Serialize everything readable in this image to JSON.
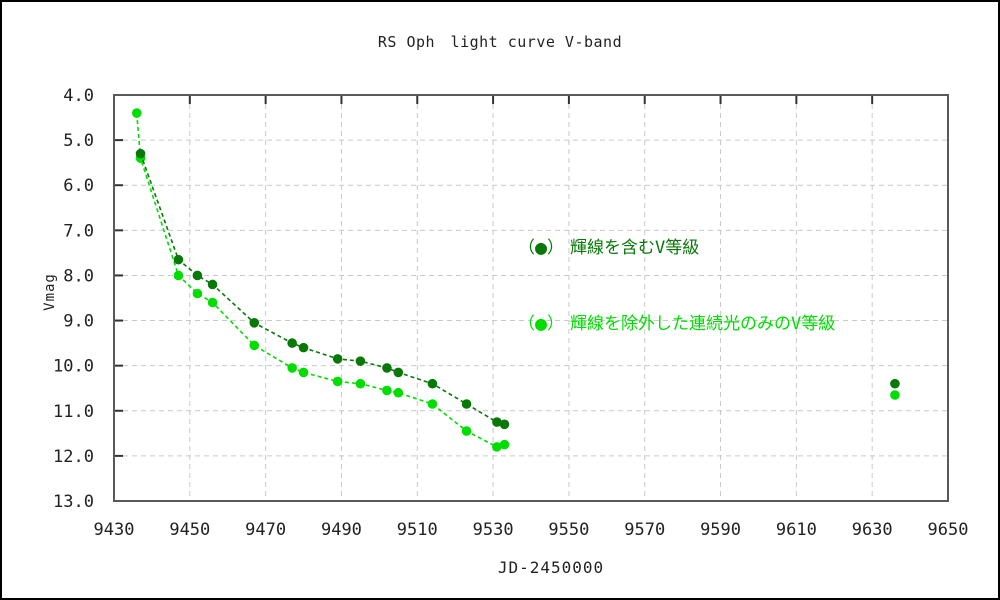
{
  "window": {
    "background": "#ffffff",
    "border_color": "#000000"
  },
  "chart": {
    "title": "RS Oph　light curve V-band",
    "xlabel": "JD-2450000",
    "ylabel": "Vmag"
  },
  "legend": {
    "entries": [
      {
        "open": "（",
        "dot": "●",
        "close": "）",
        "label": "輝線を含むV等級",
        "color": "#087808"
      },
      {
        "open": "（",
        "dot": "●",
        "close": "）",
        "label": "輝線を除外した連続光のみのV等級",
        "color": "#00dd00"
      }
    ]
  },
  "chart_data": {
    "type": "scatter",
    "title": "RS Oph　light curve V-band",
    "xlabel": "JD-2450000",
    "ylabel": "Vmag",
    "x_range": [
      9430,
      9650
    ],
    "y_range": [
      4.0,
      13.0
    ],
    "y_inverted": true,
    "grid": true,
    "grid_color": "#c9c9c9",
    "frame_color": "#595959",
    "x_ticks": [
      9430,
      9450,
      9470,
      9490,
      9510,
      9530,
      9550,
      9570,
      9590,
      9610,
      9630,
      9650
    ],
    "x_tick_labels": [
      "9430",
      "9450",
      "9470",
      "9490",
      "9510",
      "9530",
      "9550",
      "9570",
      "9590",
      "9610",
      "9630",
      "9650"
    ],
    "y_ticks": [
      4,
      5,
      6,
      7,
      8,
      9,
      10,
      11,
      12,
      13
    ],
    "y_tick_labels": [
      "4.0",
      "5.0",
      "6.0",
      "7.0",
      "8.0",
      "9.0",
      "10.0",
      "11.0",
      "12.0",
      "13.0"
    ],
    "line_gap_threshold_days": 40,
    "series": [
      {
        "name": "輝線を含むV等級",
        "color": "#087808",
        "marker": "circle",
        "line": "dashed",
        "x": [
          9437,
          9447,
          9452,
          9456,
          9467,
          9477,
          9480,
          9489,
          9495,
          9502,
          9505,
          9514,
          9523,
          9531,
          9533,
          9636
        ],
        "y": [
          5.3,
          7.65,
          8.0,
          8.2,
          9.05,
          9.5,
          9.6,
          9.85,
          9.9,
          10.05,
          10.15,
          10.4,
          10.85,
          11.25,
          11.3,
          10.4
        ]
      },
      {
        "name": "輝線を除外した連続光のみのV等級",
        "color": "#00dd00",
        "marker": "circle",
        "line": "dashed",
        "x": [
          9436,
          9437,
          9447,
          9452,
          9456,
          9467,
          9477,
          9480,
          9489,
          9495,
          9502,
          9505,
          9514,
          9523,
          9531,
          9533,
          9636
        ],
        "y": [
          4.4,
          5.4,
          8.0,
          8.4,
          8.6,
          9.55,
          10.05,
          10.15,
          10.35,
          10.4,
          10.55,
          10.6,
          10.85,
          11.45,
          11.8,
          11.75,
          10.65
        ]
      }
    ]
  }
}
